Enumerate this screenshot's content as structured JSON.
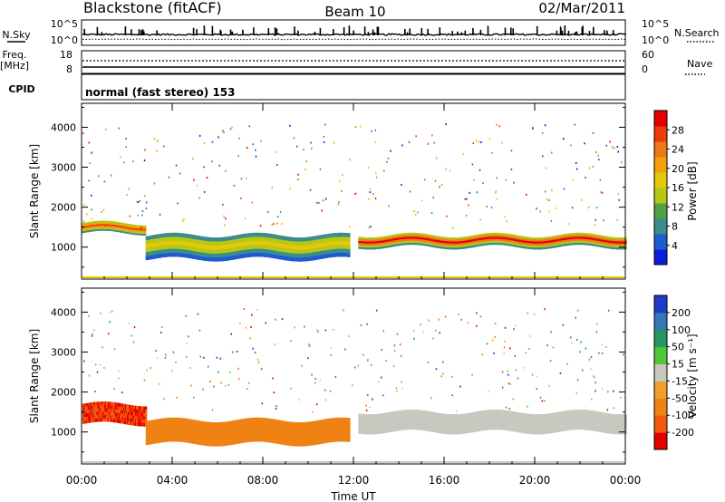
{
  "header": {
    "title": "Blackstone (fitACF)",
    "beam": "Beam 10",
    "date": "02/Mar/2011"
  },
  "noise_panel": {
    "left_label": "N.Sky",
    "right_label": "N.Search",
    "left_ticks": [
      "10^5",
      "10^0"
    ],
    "right_ticks": [
      "10^5",
      "10^0"
    ]
  },
  "freq_panel": {
    "left_label_1": "Freq.",
    "left_label_2": "[MHz]",
    "right_label": "Nave",
    "left_ticks": [
      "18",
      "8"
    ],
    "right_ticks": [
      "60",
      "0"
    ]
  },
  "cpid_panel": {
    "label": "CPID",
    "text": "normal (fast stereo) 153"
  },
  "chart_data": [
    {
      "type": "heatmap",
      "name": "power",
      "ylabel": "Slant Range [km]",
      "xlabel": "",
      "ylim": [
        200,
        4600
      ],
      "yticks": [
        1000,
        2000,
        3000,
        4000
      ],
      "x_ticks": [
        "00:00",
        "04:00",
        "08:00",
        "12:00",
        "16:00",
        "20:00",
        "00:00"
      ],
      "xlim_hours": [
        0,
        24
      ],
      "colorbar": {
        "label": "Power [dB]",
        "ticks": [
          "4",
          "8",
          "12",
          "16",
          "20",
          "24",
          "28"
        ],
        "colors": [
          "#0b1edc",
          "#1e5ad2",
          "#3c8c8c",
          "#50a046",
          "#b4c814",
          "#e6c80a",
          "#f5a00a",
          "#f07814",
          "#eb3c0a",
          "#e60000"
        ]
      },
      "features": [
        {
          "type": "echo_band",
          "from_hour": 0.0,
          "to_hour": 2.8,
          "range_km": [
            1350,
            1600
          ],
          "peak_db": 24
        },
        {
          "type": "echo_band",
          "from_hour": 2.8,
          "to_hour": 11.8,
          "range_km": [
            700,
            1300
          ],
          "peak_db": 16
        },
        {
          "type": "echo_band",
          "from_hour": 12.2,
          "to_hour": 24.0,
          "range_km": [
            1000,
            1300
          ],
          "peak_db": 28
        }
      ]
    },
    {
      "type": "heatmap",
      "name": "velocity",
      "ylabel": "Slant Range [km]",
      "xlabel": "Time UT",
      "ylim": [
        200,
        4600
      ],
      "yticks": [
        1000,
        2000,
        3000,
        4000
      ],
      "x_ticks": [
        "00:00",
        "04:00",
        "08:00",
        "12:00",
        "16:00",
        "20:00",
        "00:00"
      ],
      "xlim_hours": [
        0,
        24
      ],
      "colorbar": {
        "label": "Velocity [m s⁻¹]",
        "ticks": [
          "200",
          "100",
          "50",
          "15",
          "-15",
          "-50",
          "-100",
          "-200"
        ],
        "colors": [
          "#1e3cc8",
          "#3278b4",
          "#289664",
          "#50c83c",
          "#c8c8c0",
          "#f0a028",
          "#f08214",
          "#f05a0a",
          "#e60000"
        ]
      },
      "features": [
        {
          "type": "echo_band",
          "from_hour": 0.0,
          "to_hour": 2.8,
          "range_km": [
            1200,
            1700
          ],
          "velocity_ms": -200
        },
        {
          "type": "echo_band",
          "from_hour": 2.8,
          "to_hour": 11.8,
          "range_km": [
            700,
            1300
          ],
          "velocity_ms": -75
        },
        {
          "type": "echo_band",
          "from_hour": 12.2,
          "to_hour": 24.0,
          "range_km": [
            1000,
            1500
          ],
          "velocity_ms": 0
        }
      ]
    }
  ]
}
